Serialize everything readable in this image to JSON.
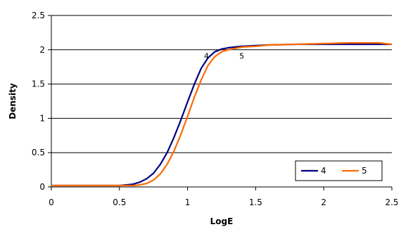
{
  "chart_data": {
    "type": "line",
    "xlabel": "LogE",
    "ylabel": "Density",
    "xlim": [
      0,
      2.5
    ],
    "ylim": [
      0,
      2.5
    ],
    "x_ticks": [
      "0",
      "0.5",
      "1",
      "1.5",
      "2",
      "2.5"
    ],
    "y_ticks": [
      "0",
      "0.5",
      "1",
      "1.5",
      "2",
      "2.5"
    ],
    "grid": "horizontal",
    "legend_position": "bottom-right",
    "series": [
      {
        "name": "4",
        "color": "#000080",
        "x": [
          0,
          0.5,
          0.55,
          0.6,
          0.65,
          0.7,
          0.75,
          0.8,
          0.85,
          0.9,
          0.95,
          1.0,
          1.05,
          1.1,
          1.15,
          1.2,
          1.25,
          1.3,
          1.35,
          1.4,
          1.5,
          1.6,
          1.8,
          2.0,
          2.2,
          2.4,
          2.5
        ],
        "y": [
          0.02,
          0.02,
          0.03,
          0.04,
          0.07,
          0.12,
          0.2,
          0.33,
          0.5,
          0.72,
          0.97,
          1.24,
          1.5,
          1.73,
          1.88,
          1.97,
          2.01,
          2.03,
          2.04,
          2.05,
          2.06,
          2.07,
          2.08,
          2.08,
          2.08,
          2.08,
          2.08
        ]
      },
      {
        "name": "5",
        "color": "#FF6A00",
        "x": [
          0,
          0.5,
          0.6,
          0.65,
          0.7,
          0.75,
          0.8,
          0.85,
          0.9,
          0.95,
          1.0,
          1.05,
          1.1,
          1.15,
          1.2,
          1.25,
          1.3,
          1.35,
          1.4,
          1.5,
          1.6,
          1.8,
          2.0,
          2.2,
          2.4,
          2.5
        ],
        "y": [
          0.02,
          0.02,
          0.02,
          0.03,
          0.05,
          0.1,
          0.19,
          0.33,
          0.52,
          0.76,
          1.03,
          1.31,
          1.56,
          1.77,
          1.9,
          1.97,
          2.0,
          2.02,
          2.04,
          2.05,
          2.07,
          2.08,
          2.09,
          2.1,
          2.1,
          2.08
        ]
      }
    ],
    "annotations": [
      {
        "text": "4",
        "x": 1.12,
        "y": 1.87
      },
      {
        "text": "5",
        "x": 1.38,
        "y": 1.87
      }
    ]
  }
}
